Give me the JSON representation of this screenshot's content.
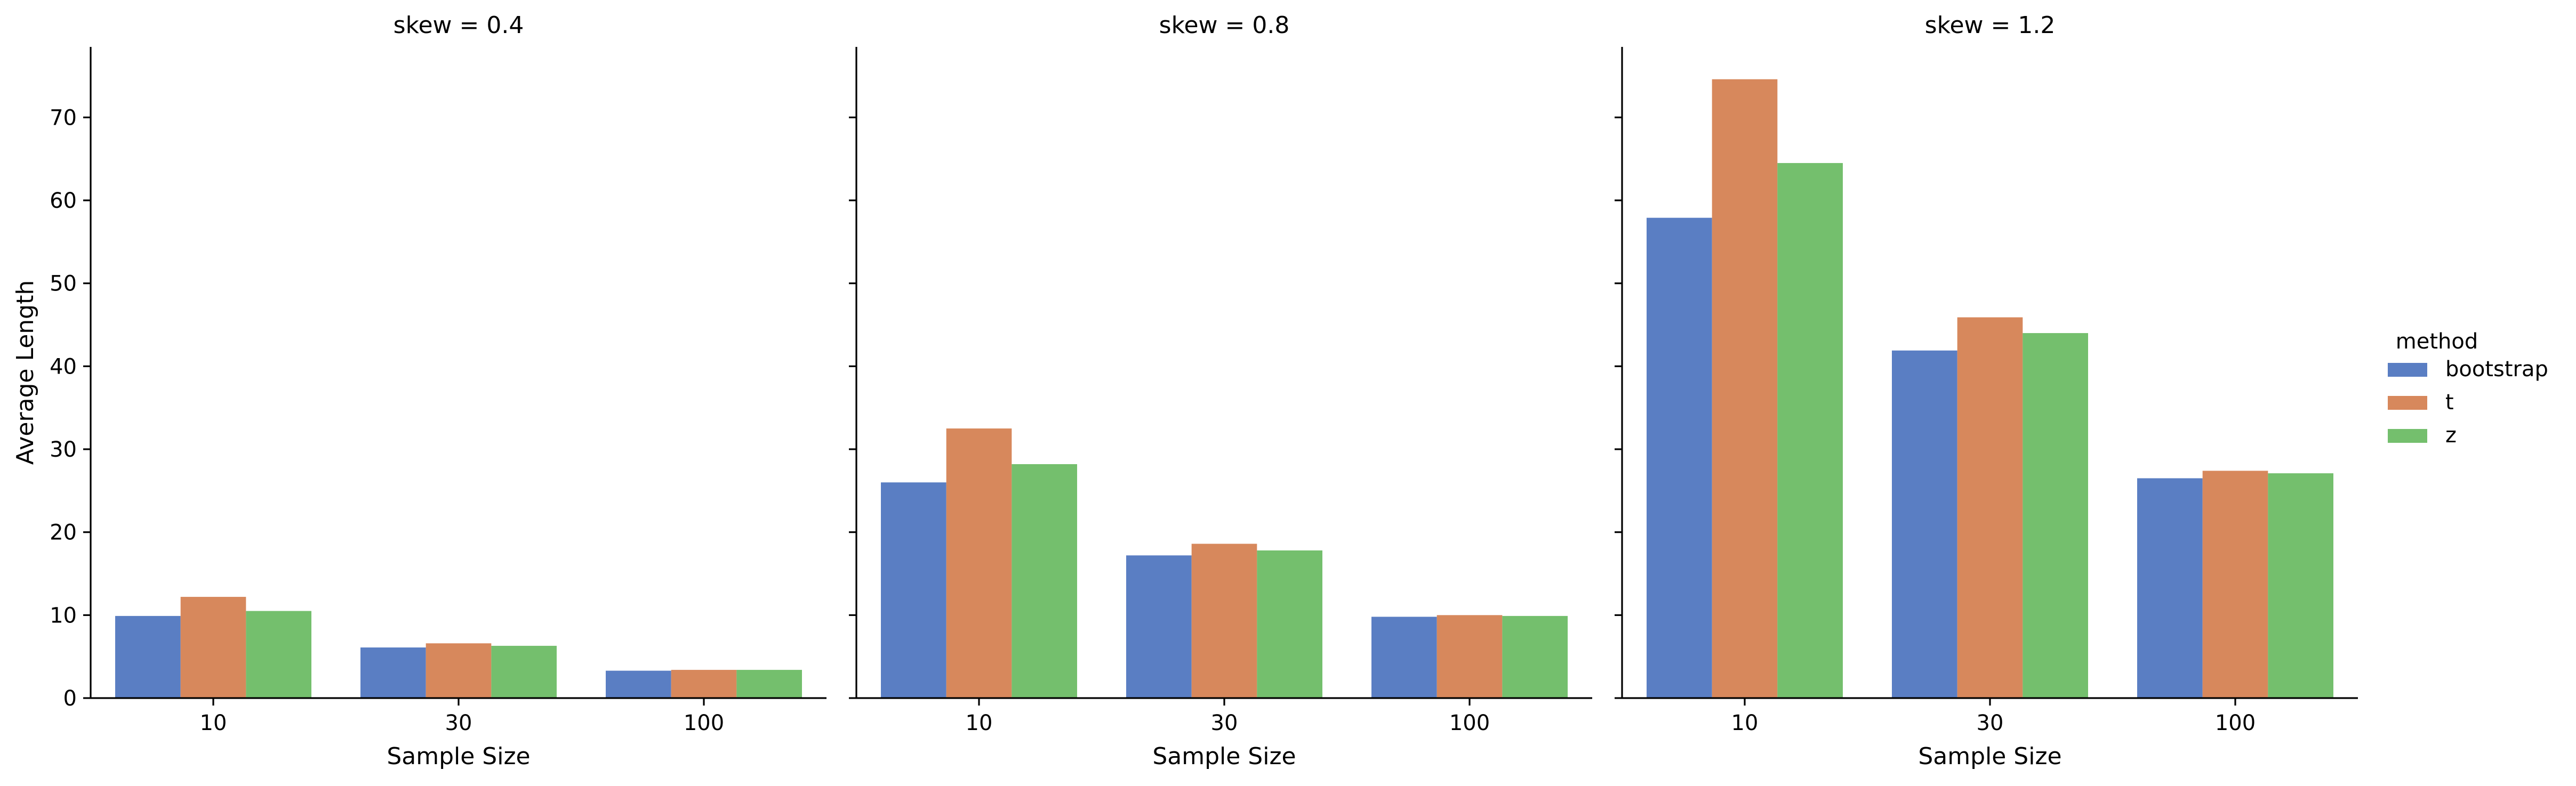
{
  "chart_data": {
    "type": "bar",
    "categories": [
      "10",
      "30",
      "100"
    ],
    "series_names": [
      "bootstrap",
      "t",
      "z"
    ],
    "colors": {
      "bootstrap": "#5a7ec3",
      "t": "#d7885c",
      "z": "#74bf6d"
    },
    "xlabel": "Sample Size",
    "ylabel": "Average Length",
    "ylim": [
      0,
      78.5
    ],
    "yticks": [
      0,
      10,
      20,
      30,
      40,
      50,
      60,
      70
    ],
    "legend": {
      "title": "method",
      "placement": "right"
    },
    "grid": false,
    "facets": [
      {
        "title": "skew = 0.4",
        "series": [
          {
            "name": "bootstrap",
            "values": [
              9.9,
              6.1,
              3.3
            ]
          },
          {
            "name": "t",
            "values": [
              12.2,
              6.6,
              3.4
            ]
          },
          {
            "name": "z",
            "values": [
              10.5,
              6.3,
              3.4
            ]
          }
        ]
      },
      {
        "title": "skew = 0.8",
        "series": [
          {
            "name": "bootstrap",
            "values": [
              26.0,
              17.2,
              9.8
            ]
          },
          {
            "name": "t",
            "values": [
              32.5,
              18.6,
              10.0
            ]
          },
          {
            "name": "z",
            "values": [
              28.2,
              17.8,
              9.9
            ]
          }
        ]
      },
      {
        "title": "skew = 1.2",
        "series": [
          {
            "name": "bootstrap",
            "values": [
              57.9,
              41.9,
              26.5
            ]
          },
          {
            "name": "t",
            "values": [
              74.6,
              45.9,
              27.4
            ]
          },
          {
            "name": "z",
            "values": [
              64.5,
              44.0,
              27.1
            ]
          }
        ]
      }
    ]
  }
}
